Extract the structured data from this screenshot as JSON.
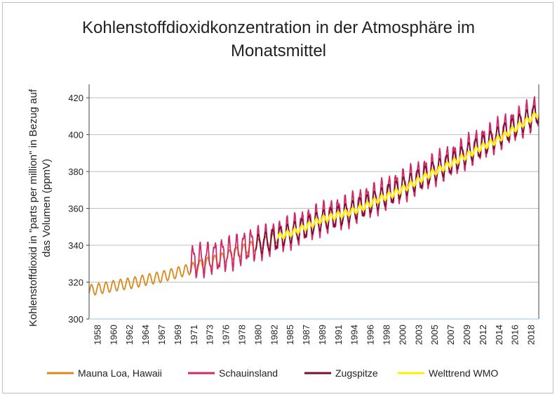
{
  "chart_data": {
    "type": "line",
    "title_lines": [
      "Kohlenstoffdioxidkonzentration in der Atmosphäre im",
      "Monatsmittel"
    ],
    "ylabel_lines": [
      "Kohlenstoffdioxid in \"parts per million\" in Bezug auf",
      "das Volumen (ppmV)"
    ],
    "ylim": [
      300,
      425
    ],
    "yticks": [
      300,
      320,
      340,
      360,
      380,
      400,
      420
    ],
    "xlim": [
      1958,
      2020
    ],
    "xtick_labels": [
      "1958",
      "1960",
      "1962",
      "1964",
      "1967",
      "1969",
      "1971",
      "1973",
      "1976",
      "1978",
      "1980",
      "1982",
      "1985",
      "1987",
      "1989",
      "1991",
      "1994",
      "1996",
      "1998",
      "2000",
      "2003",
      "2005",
      "2007",
      "2009",
      "2012",
      "2014",
      "2016",
      "2018"
    ],
    "grid": "horizontal",
    "legend_position": "bottom",
    "series": [
      {
        "name": "Mauna Loa, Hawaii",
        "color": "#d98a1a",
        "x": [
          1958,
          1960,
          1962,
          1964,
          1966,
          1968,
          1970,
          1972,
          1974,
          1976,
          1978,
          1980,
          1982,
          1984
        ],
        "trend": [
          315.5,
          316.9,
          318.4,
          319.6,
          321.4,
          322.9,
          325.0,
          327.2,
          330.2,
          332.3,
          335.5,
          338.7,
          341.3,
          344.4
        ],
        "amplitude": 3.0
      },
      {
        "name": "Schauinsland",
        "color": "#d12a6a",
        "x": [
          1972,
          1975,
          1978,
          1980,
          1983,
          1985,
          1988,
          1990,
          1993,
          1995,
          1998,
          2000,
          2003,
          2005,
          2008,
          2010,
          2013,
          2015,
          2018,
          2020
        ],
        "trend": [
          331.0,
          333.2,
          336.3,
          339.8,
          343.0,
          346.1,
          350.8,
          354.5,
          357.6,
          361.0,
          366.2,
          370.0,
          375.7,
          380.0,
          385.8,
          390.5,
          396.8,
          401.4,
          408.0,
          413.0
        ],
        "amplitude": 7.5
      },
      {
        "name": "Zugspitze",
        "color": "#7a1035",
        "x": [
          1981,
          1983,
          1985,
          1988,
          1990,
          1993,
          1995,
          1998,
          2000,
          2003,
          2005,
          2008,
          2010,
          2013,
          2015,
          2018,
          2020
        ],
        "trend": [
          340.0,
          342.6,
          345.4,
          350.0,
          353.5,
          356.5,
          359.8,
          365.0,
          368.9,
          374.8,
          379.0,
          384.8,
          389.5,
          395.8,
          400.2,
          407.2,
          411.9
        ],
        "amplitude": 5.5
      },
      {
        "name": "Welttrend WMO",
        "color": "#ffee00",
        "x": [
          1984,
          1986,
          1988,
          1990,
          1992,
          1994,
          1996,
          1998,
          2000,
          2002,
          2004,
          2006,
          2008,
          2010,
          2012,
          2014,
          2016,
          2018,
          2020
        ],
        "trend": [
          344.5,
          346.9,
          350.2,
          353.9,
          356.0,
          358.0,
          361.0,
          365.0,
          368.0,
          372.0,
          376.5,
          380.5,
          384.5,
          388.5,
          393.0,
          396.5,
          401.5,
          406.5,
          411.5
        ],
        "amplitude": 1.8
      }
    ]
  }
}
